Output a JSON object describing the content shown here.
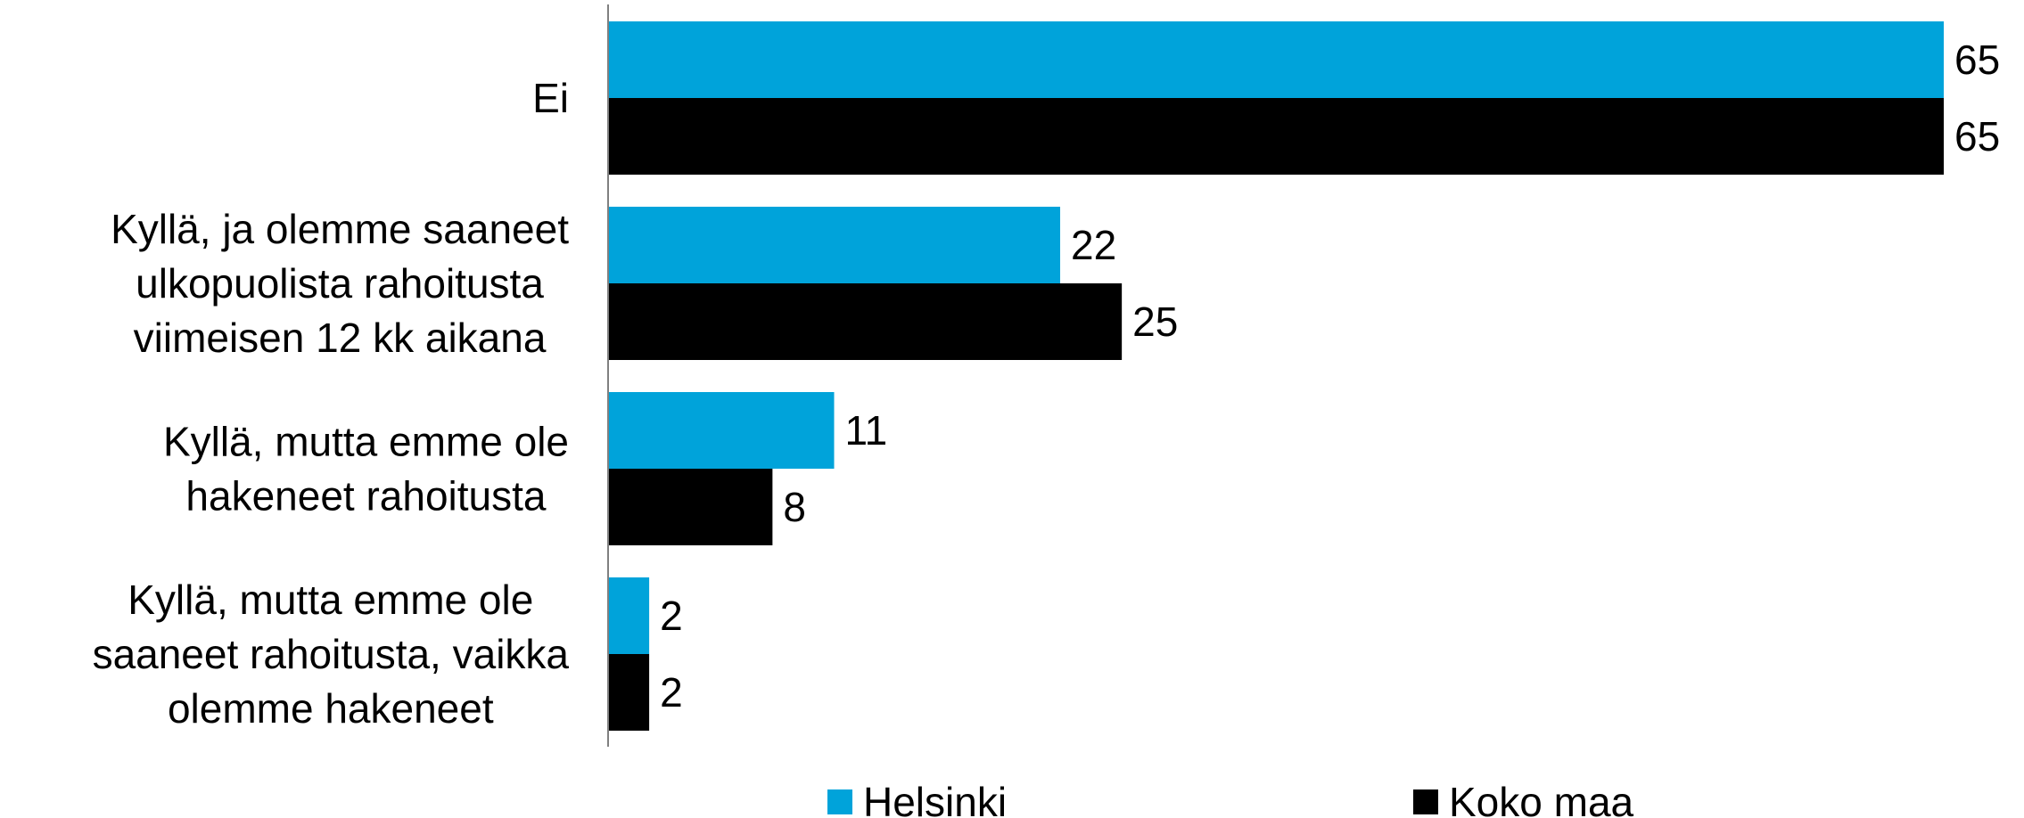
{
  "chart_data": {
    "type": "bar",
    "orientation": "horizontal",
    "categories": [
      [
        "Ei"
      ],
      [
        "Kyllä, ja olemme saaneet",
        "ulkopuolista rahoitusta",
        "viimeisen 12 kk aikana"
      ],
      [
        "Kyllä, mutta emme ole",
        "hakeneet rahoitusta"
      ],
      [
        "Kyllä, mutta emme ole",
        "saaneet rahoitusta, vaikka",
        "olemme hakeneet"
      ]
    ],
    "series": [
      {
        "name": "Helsinki",
        "color": "#00A3DA",
        "values": [
          65,
          22,
          11,
          2
        ]
      },
      {
        "name": "Koko maa",
        "color": "#000000",
        "values": [
          65,
          25,
          8,
          2
        ]
      }
    ],
    "title": "",
    "xlabel": "",
    "ylabel": "",
    "xlim": [
      0,
      65
    ],
    "grid": false,
    "legend_position": "bottom",
    "data_labels": true
  }
}
